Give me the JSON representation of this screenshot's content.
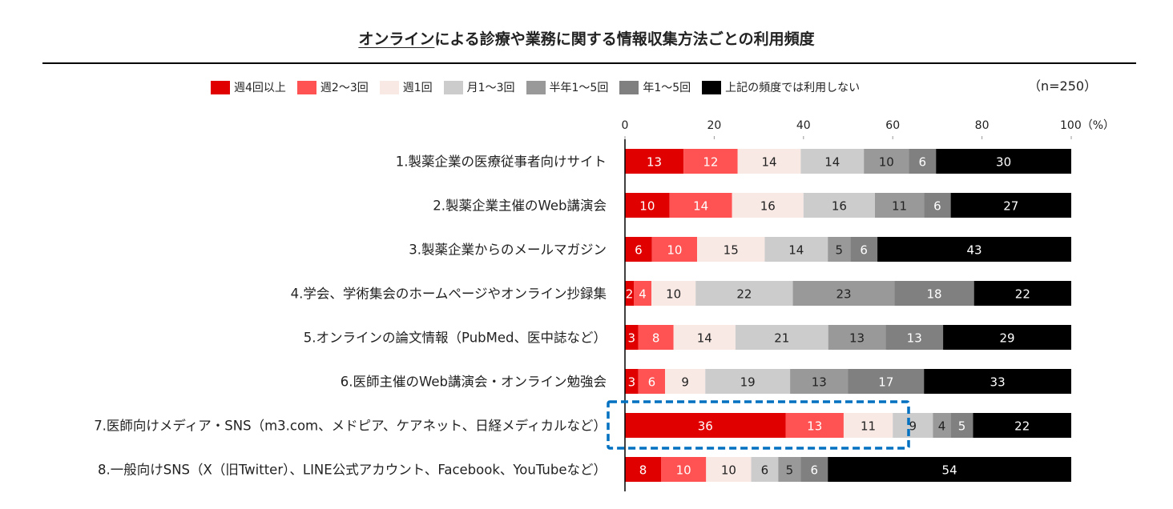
{
  "chart_data": {
    "type": "bar",
    "orientation": "horizontal",
    "stacked": true,
    "title_underlined": "オンライン",
    "title_rest": "による診療や業務に関する情報収集方法ごとの利用頻度",
    "sample_note": "（n=250）",
    "xlim": [
      0,
      100
    ],
    "x_ticks": [
      "0",
      "20",
      "40",
      "60",
      "80",
      "100（%）"
    ],
    "legend_position": "top",
    "categories": [
      "1.製薬企業の医療従事者向けサイト",
      "2.製薬企業主催のWeb講演会",
      "3.製薬企業からのメールマガジン",
      "4.学会、学術集会のホームページやオンライン抄録集",
      "5.オンラインの論文情報（PubMed、医中誌など）",
      "6.医師主催のWeb講演会・オンライン勉強会",
      "7.医師向けメディア・SNS（m3.com、メドピア、ケアネット、日経メディカルなど）",
      "8.一般向けSNS（X（旧Twitter）、LINE公式アカウント、Facebook、YouTubeなど）"
    ],
    "series": [
      {
        "name": "週4回以上",
        "color": "#e00000",
        "label_color": "#ffffff",
        "values": [
          13,
          10,
          6,
          2,
          3,
          3,
          36,
          8
        ]
      },
      {
        "name": "週2～3回",
        "color": "#ff5252",
        "label_color": "#ffffff",
        "values": [
          12,
          14,
          10,
          4,
          8,
          6,
          13,
          10
        ]
      },
      {
        "name": "週1回",
        "color": "#f9e9e5",
        "label_color": "#222222",
        "values": [
          14,
          16,
          15,
          10,
          14,
          9,
          11,
          10
        ]
      },
      {
        "name": "月1～3回",
        "color": "#cccccc",
        "label_color": "#222222",
        "values": [
          14,
          16,
          14,
          22,
          21,
          19,
          9,
          6
        ]
      },
      {
        "name": "半年1～5回",
        "color": "#999999",
        "label_color": "#222222",
        "values": [
          10,
          11,
          5,
          23,
          13,
          13,
          4,
          5
        ]
      },
      {
        "name": "年1～5回",
        "color": "#808080",
        "label_color": "#ffffff",
        "values": [
          6,
          6,
          6,
          18,
          13,
          17,
          5,
          6
        ]
      },
      {
        "name": "上記の頻度では利用しない",
        "color": "#000000",
        "label_color": "#ffffff",
        "values": [
          30,
          27,
          43,
          22,
          29,
          33,
          22,
          54
        ]
      }
    ],
    "highlight": {
      "category_index": 6,
      "color": "#0070c0"
    }
  }
}
